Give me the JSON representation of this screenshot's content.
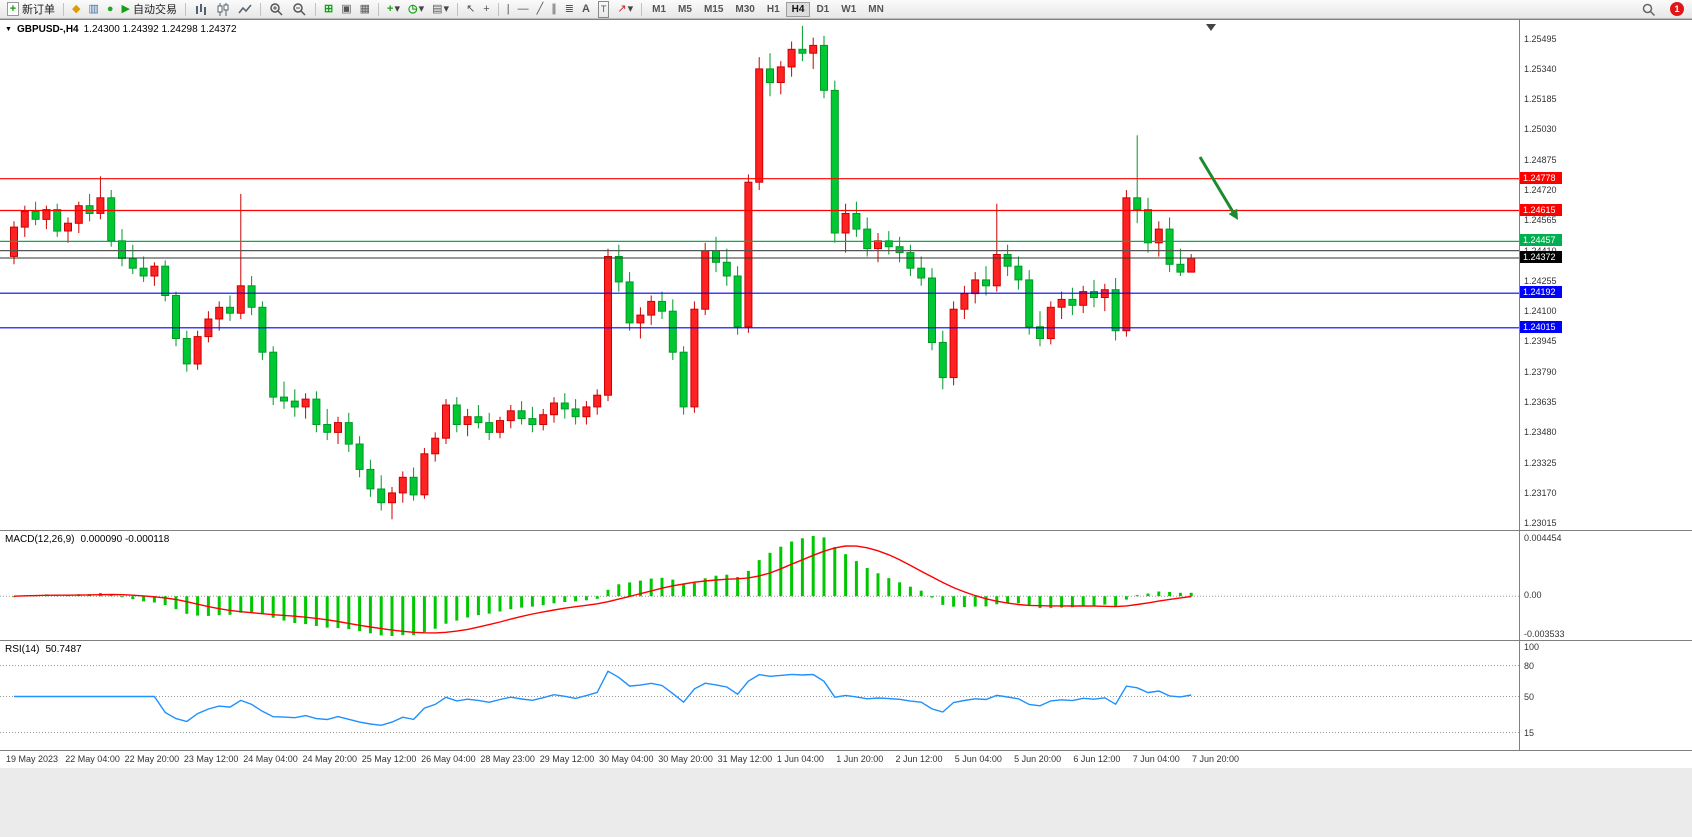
{
  "toolbar": {
    "new_order_label": "新订单",
    "autotrading_label": "自动交易",
    "timeframes": [
      "M1",
      "M5",
      "M15",
      "M30",
      "H1",
      "H4",
      "D1",
      "W1",
      "MN"
    ],
    "active_timeframe": "H4",
    "notification_badge": "1"
  },
  "icons": {
    "new_order": "+",
    "market_watch": "◆",
    "data_window": "▥",
    "navigator": "●",
    "autotrading": "▶",
    "tile_windows": "⊞",
    "cascade_windows": "▣",
    "arrange_windows": "▦",
    "indicators": "+",
    "periods": "◷",
    "templates": "▤",
    "cursor": "↖",
    "crosshair": "+",
    "vline": "|",
    "hline": "—",
    "trendline": "╱",
    "channel": "∥",
    "fibonacci": "≣",
    "text": "A",
    "text_label": "T",
    "arrows": "↗",
    "dropdown": "▾",
    "symbol_dropdown": "▼"
  },
  "chart": {
    "symbol_label": "GBPUSD-,H4",
    "ohlc_label": "1.24300 1.24392 1.24298 1.24372",
    "price_scale": [
      "1.25495",
      "1.25340",
      "1.25185",
      "1.25030",
      "1.24875",
      "1.24720",
      "1.24565",
      "1.24410",
      "1.24255",
      "1.24100",
      "1.23945",
      "1.23790",
      "1.23635",
      "1.23480",
      "1.23325",
      "1.23170",
      "1.23015"
    ],
    "price_lines": [
      {
        "price": "1.24778",
        "color": "#ff0000",
        "label_bg": "#ff0000"
      },
      {
        "price": "1.24615",
        "color": "#ff0000",
        "label_bg": "#ff0000"
      },
      {
        "price": "1.24457",
        "color": "#00b050",
        "label_bg": "#00b050"
      },
      {
        "price": "1.24410",
        "color": "#555555",
        "label_bg": ""
      },
      {
        "price": "1.24192",
        "color": "#0000ff",
        "label_bg": "#0000ff"
      },
      {
        "price": "1.24015",
        "color": "#0000ff",
        "label_bg": "#0000ff"
      }
    ],
    "bid_line": {
      "price": "1.24372",
      "color": "#000000"
    },
    "arrow_annotation_color": "#1e8a2e",
    "time_scale": [
      "19 May 2023",
      "22 May 04:00",
      "22 May 20:00",
      "23 May 12:00",
      "24 May 04:00",
      "24 May 20:00",
      "25 May 12:00",
      "26 May 04:00",
      "28 May 23:00",
      "29 May 12:00",
      "30 May 04:00",
      "30 May 20:00",
      "31 May 12:00",
      "1 Jun 04:00",
      "1 Jun 20:00",
      "2 Jun 12:00",
      "5 Jun 04:00",
      "5 Jun 20:00",
      "6 Jun 12:00",
      "7 Jun 04:00",
      "7 Jun 20:00"
    ]
  },
  "macd": {
    "label": "MACD(12,26,9)",
    "values": "0.000090 -0.000118",
    "axis_max": "0.004454",
    "axis_zero": "0.00",
    "axis_min": "-0.003533",
    "bar_color": "#00c800",
    "signal_color": "#ff0000"
  },
  "rsi": {
    "label": "RSI(14)",
    "value": "50.7487",
    "axis": [
      "100",
      "80",
      "50",
      "15"
    ],
    "levels": [
      80,
      50,
      15
    ],
    "line_color": "#1e90ff"
  },
  "chart_data": {
    "type": "candlestick",
    "symbol": "GBPUSD-",
    "period": "H4",
    "bull_color": "#ff2222",
    "bull_border": "#cc0000",
    "bear_color": "#00c832",
    "bear_border": "#009926",
    "candles": [
      [
        1.2438,
        1.2456,
        1.2434,
        1.2453
      ],
      [
        1.2453,
        1.2464,
        1.2448,
        1.2461
      ],
      [
        1.2461,
        1.2466,
        1.2454,
        1.2457
      ],
      [
        1.2457,
        1.2464,
        1.2452,
        1.2462
      ],
      [
        1.2462,
        1.2465,
        1.2448,
        1.2451
      ],
      [
        1.2451,
        1.2458,
        1.2445,
        1.2455
      ],
      [
        1.2455,
        1.2466,
        1.245,
        1.2464
      ],
      [
        1.2464,
        1.247,
        1.2456,
        1.246
      ],
      [
        1.246,
        1.2479,
        1.2457,
        1.2468
      ],
      [
        1.2468,
        1.2472,
        1.2443,
        1.2446
      ],
      [
        1.2446,
        1.2452,
        1.2433,
        1.2437
      ],
      [
        1.2437,
        1.2444,
        1.2429,
        1.2432
      ],
      [
        1.2432,
        1.2438,
        1.2425,
        1.2428
      ],
      [
        1.2428,
        1.2435,
        1.2423,
        1.2433
      ],
      [
        1.2433,
        1.2436,
        1.2415,
        1.2418
      ],
      [
        1.2418,
        1.242,
        1.2392,
        1.2396
      ],
      [
        1.2396,
        1.24,
        1.2379,
        1.2383
      ],
      [
        1.2383,
        1.24,
        1.238,
        1.2397
      ],
      [
        1.2397,
        1.241,
        1.2394,
        1.2406
      ],
      [
        1.2406,
        1.2415,
        1.24,
        1.2412
      ],
      [
        1.2412,
        1.2418,
        1.2405,
        1.2409
      ],
      [
        1.2409,
        1.247,
        1.2406,
        1.2423
      ],
      [
        1.2423,
        1.2428,
        1.2408,
        1.2412
      ],
      [
        1.2412,
        1.2415,
        1.2385,
        1.2389
      ],
      [
        1.2389,
        1.2392,
        1.2362,
        1.2366
      ],
      [
        1.2366,
        1.2374,
        1.236,
        1.2364
      ],
      [
        1.2364,
        1.237,
        1.2356,
        1.2361
      ],
      [
        1.2361,
        1.2368,
        1.2355,
        1.2365
      ],
      [
        1.2365,
        1.2369,
        1.2348,
        1.2352
      ],
      [
        1.2352,
        1.236,
        1.2344,
        1.2348
      ],
      [
        1.2348,
        1.2356,
        1.2342,
        1.2353
      ],
      [
        1.2353,
        1.2358,
        1.2338,
        1.2342
      ],
      [
        1.2342,
        1.2346,
        1.2325,
        1.2329
      ],
      [
        1.2329,
        1.2334,
        1.2315,
        1.2319
      ],
      [
        1.2319,
        1.2326,
        1.2308,
        1.2312
      ],
      [
        1.2312,
        1.232,
        1.23035,
        1.2317
      ],
      [
        1.2317,
        1.2328,
        1.2312,
        1.2325
      ],
      [
        1.2325,
        1.233,
        1.2313,
        1.2316
      ],
      [
        1.2316,
        1.234,
        1.2314,
        1.2337
      ],
      [
        1.2337,
        1.2348,
        1.2333,
        1.2345
      ],
      [
        1.2345,
        1.2365,
        1.2342,
        1.2362
      ],
      [
        1.2362,
        1.2366,
        1.2348,
        1.2352
      ],
      [
        1.2352,
        1.236,
        1.2346,
        1.2356
      ],
      [
        1.2356,
        1.2362,
        1.235,
        1.2353
      ],
      [
        1.2353,
        1.2358,
        1.2344,
        1.2348
      ],
      [
        1.2348,
        1.2356,
        1.2345,
        1.2354
      ],
      [
        1.2354,
        1.2362,
        1.235,
        1.2359
      ],
      [
        1.2359,
        1.2364,
        1.2352,
        1.2355
      ],
      [
        1.2355,
        1.2361,
        1.2348,
        1.2352
      ],
      [
        1.2352,
        1.236,
        1.2349,
        1.2357
      ],
      [
        1.2357,
        1.2366,
        1.2353,
        1.2363
      ],
      [
        1.2363,
        1.2368,
        1.2355,
        1.236
      ],
      [
        1.236,
        1.2365,
        1.2352,
        1.2356
      ],
      [
        1.2356,
        1.2364,
        1.2352,
        1.2361
      ],
      [
        1.2361,
        1.237,
        1.2357,
        1.2367
      ],
      [
        1.2367,
        1.2442,
        1.2364,
        1.2438
      ],
      [
        1.2438,
        1.2444,
        1.242,
        1.2425
      ],
      [
        1.2425,
        1.243,
        1.24,
        1.2404
      ],
      [
        1.2404,
        1.2412,
        1.2396,
        1.2408
      ],
      [
        1.2408,
        1.2418,
        1.2403,
        1.2415
      ],
      [
        1.2415,
        1.242,
        1.2406,
        1.241
      ],
      [
        1.241,
        1.2416,
        1.2385,
        1.2389
      ],
      [
        1.2389,
        1.2392,
        1.2357,
        1.2361
      ],
      [
        1.2361,
        1.2415,
        1.2358,
        1.2411
      ],
      [
        1.2411,
        1.2445,
        1.2408,
        1.2441
      ],
      [
        1.2441,
        1.2448,
        1.243,
        1.2435
      ],
      [
        1.2435,
        1.2442,
        1.2423,
        1.2428
      ],
      [
        1.2428,
        1.2433,
        1.2398,
        1.2402
      ],
      [
        1.2402,
        1.248,
        1.2399,
        1.2476
      ],
      [
        1.2476,
        1.254,
        1.2472,
        1.2534
      ],
      [
        1.2534,
        1.2542,
        1.252,
        1.2527
      ],
      [
        1.2527,
        1.2538,
        1.2521,
        1.2535
      ],
      [
        1.2535,
        1.2548,
        1.253,
        1.2544
      ],
      [
        1.2544,
        1.2556,
        1.2538,
        1.2542
      ],
      [
        1.2542,
        1.255,
        1.2534,
        1.2546
      ],
      [
        1.2546,
        1.2551,
        1.2519,
        1.2523
      ],
      [
        1.2523,
        1.2528,
        1.2445,
        1.245
      ],
      [
        1.245,
        1.2465,
        1.244,
        1.246
      ],
      [
        1.246,
        1.2466,
        1.2448,
        1.2452
      ],
      [
        1.2452,
        1.2458,
        1.2438,
        1.2442
      ],
      [
        1.2442,
        1.245,
        1.2435,
        1.2446
      ],
      [
        1.2446,
        1.2451,
        1.2439,
        1.2443
      ],
      [
        1.2443,
        1.2448,
        1.2435,
        1.244
      ],
      [
        1.244,
        1.2444,
        1.2428,
        1.2432
      ],
      [
        1.2432,
        1.2438,
        1.2423,
        1.2427
      ],
      [
        1.2427,
        1.2432,
        1.239,
        1.2394
      ],
      [
        1.2394,
        1.24,
        1.237,
        1.2376
      ],
      [
        1.2376,
        1.2415,
        1.2372,
        1.2411
      ],
      [
        1.2411,
        1.2423,
        1.2406,
        1.2419
      ],
      [
        1.2419,
        1.243,
        1.2414,
        1.2426
      ],
      [
        1.2426,
        1.2433,
        1.2418,
        1.2423
      ],
      [
        1.2423,
        1.2465,
        1.242,
        1.2439
      ],
      [
        1.2439,
        1.2444,
        1.2428,
        1.2433
      ],
      [
        1.2433,
        1.2438,
        1.2421,
        1.2426
      ],
      [
        1.2426,
        1.2431,
        1.2398,
        1.2402
      ],
      [
        1.2402,
        1.241,
        1.2392,
        1.2396
      ],
      [
        1.2396,
        1.2415,
        1.2393,
        1.2412
      ],
      [
        1.2412,
        1.242,
        1.2406,
        1.2416
      ],
      [
        1.2416,
        1.2422,
        1.2408,
        1.2413
      ],
      [
        1.2413,
        1.2423,
        1.2409,
        1.242
      ],
      [
        1.242,
        1.2426,
        1.2412,
        1.2417
      ],
      [
        1.2417,
        1.2424,
        1.241,
        1.2421
      ],
      [
        1.2421,
        1.2427,
        1.2395,
        1.24
      ],
      [
        1.24,
        1.2472,
        1.2397,
        1.2468
      ],
      [
        1.2468,
        1.25,
        1.2455,
        1.2462
      ],
      [
        1.2462,
        1.2468,
        1.244,
        1.2445
      ],
      [
        1.2445,
        1.2456,
        1.2438,
        1.2452
      ],
      [
        1.2452,
        1.2458,
        1.243,
        1.2434
      ],
      [
        1.2434,
        1.2442,
        1.2428,
        1.243
      ],
      [
        1.243,
        1.24392,
        1.24298,
        1.24372
      ]
    ]
  }
}
